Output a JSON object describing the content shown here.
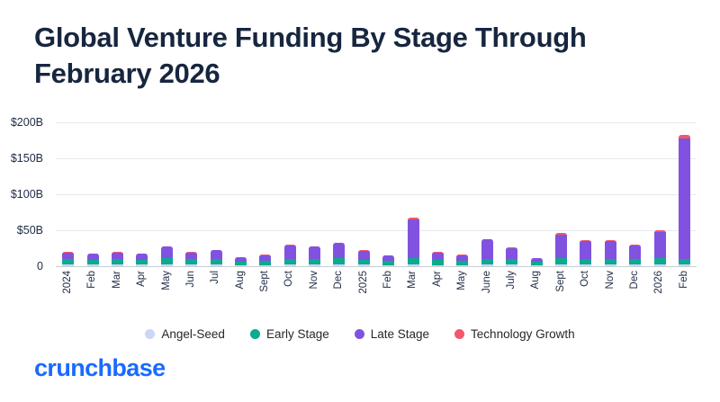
{
  "chart_data": {
    "type": "bar",
    "stacked": true,
    "title": "Global Venture Funding By Stage Through February 2026",
    "xlabel": "",
    "ylabel": "",
    "units": "$B",
    "ylim": [
      0,
      200
    ],
    "ytick_labels": [
      "$200B",
      "$150B",
      "$100B",
      "$50B",
      "0"
    ],
    "grid": true,
    "legend_position": "bottom",
    "categories": [
      "2024",
      "Feb",
      "Mar",
      "Apr",
      "May",
      "Jun",
      "Jul",
      "Aug",
      "Sept",
      "Oct",
      "Nov",
      "Dec",
      "2025",
      "Feb",
      "Mar",
      "Apr",
      "May",
      "June",
      "July",
      "Aug",
      "Sept",
      "Oct",
      "Nov",
      "Dec",
      "2026",
      "Feb"
    ],
    "series": [
      {
        "name": "Angel-Seed",
        "color": "#ccd6f6",
        "values": [
          2,
          2,
          2,
          2,
          2,
          2,
          2,
          1.5,
          1.5,
          2,
          2,
          2,
          2,
          1.5,
          2,
          1.5,
          1.5,
          2,
          2,
          1,
          2,
          2,
          2,
          2,
          2,
          2
        ]
      },
      {
        "name": "Early Stage",
        "color": "#0caa8e",
        "values": [
          8,
          7,
          8,
          7,
          9,
          8,
          8,
          5,
          6,
          8,
          8,
          9,
          7,
          6,
          9,
          7,
          6,
          8,
          8,
          5,
          9,
          8,
          8,
          8,
          9,
          8
        ]
      },
      {
        "name": "Late Stage",
        "color": "#8152e0",
        "values": [
          9,
          8,
          9,
          8,
          16,
          9,
          12,
          6,
          8,
          19,
          17,
          21,
          12,
          7,
          54,
          10,
          8,
          27,
          15,
          5,
          33,
          25,
          25,
          19,
          37,
          168
        ]
      },
      {
        "name": "Technology Growth",
        "color": "#f4566a",
        "values": [
          1,
          1,
          1,
          1,
          1,
          1,
          1,
          0.5,
          1,
          1,
          1,
          1,
          1,
          1,
          2,
          1,
          1,
          1,
          1,
          0.5,
          2,
          1,
          1,
          1,
          2,
          5
        ]
      }
    ]
  },
  "footer": {
    "logo_text": "crunchbase"
  }
}
